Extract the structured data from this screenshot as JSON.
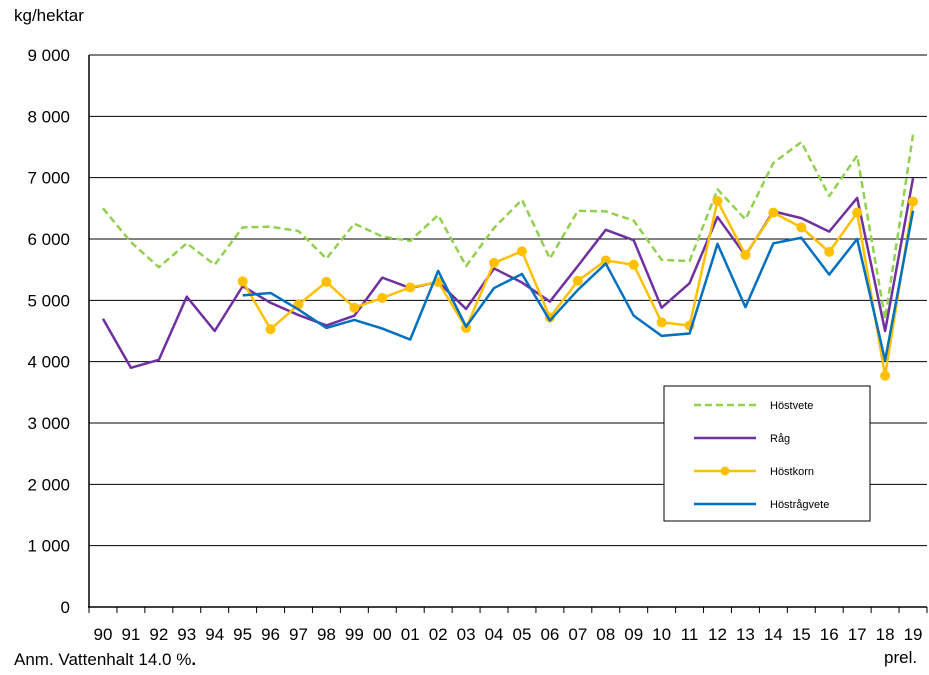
{
  "chart_data": {
    "type": "line",
    "unit_label": "kg/hektar",
    "note": "Anm. Vattenhalt 14.0 %",
    "note_end": ".",
    "x_suffix": "prel.",
    "categories": [
      "90",
      "91",
      "92",
      "93",
      "94",
      "95",
      "96",
      "97",
      "98",
      "99",
      "00",
      "01",
      "02",
      "03",
      "04",
      "05",
      "06",
      "07",
      "08",
      "09",
      "10",
      "11",
      "12",
      "13",
      "14",
      "15",
      "16",
      "17",
      "18",
      "19"
    ],
    "ylim": [
      0,
      9000
    ],
    "yticks": [
      0,
      1000,
      2000,
      3000,
      4000,
      5000,
      6000,
      7000,
      8000,
      9000
    ],
    "ytick_labels": [
      "0",
      "1 000",
      "2 000",
      "3 000",
      "4 000",
      "5 000",
      "6 000",
      "7 000",
      "8 000",
      "9 000"
    ],
    "grid": true,
    "legend_position": "right",
    "series": [
      {
        "name": "Höstvete",
        "color": "#92D050",
        "style": "dashed",
        "markers": false,
        "values": [
          6500,
          5950,
          5540,
          5930,
          5580,
          6190,
          6200,
          6130,
          5680,
          6250,
          6040,
          5970,
          6390,
          5560,
          6180,
          6640,
          5680,
          6460,
          6450,
          6300,
          5660,
          5640,
          6810,
          6320,
          7240,
          7580,
          6700,
          7360,
          4700,
          7700
        ]
      },
      {
        "name": "Råg",
        "color": "#7030A0",
        "style": "solid",
        "markers": false,
        "values": [
          4700,
          3900,
          4030,
          5060,
          4500,
          5230,
          4960,
          4760,
          4590,
          4750,
          5370,
          5200,
          5300,
          4860,
          5520,
          5290,
          4980,
          5560,
          6150,
          5980,
          4880,
          5280,
          6360,
          5730,
          6450,
          6340,
          6120,
          6670,
          4500,
          6990
        ]
      },
      {
        "name": "Höstkorn",
        "color": "#FFC000",
        "style": "solid",
        "markers": true,
        "values": [
          null,
          null,
          null,
          null,
          null,
          5310,
          4530,
          4930,
          5300,
          4880,
          5040,
          5210,
          5300,
          4550,
          5610,
          5800,
          4720,
          5320,
          5650,
          5580,
          4640,
          4590,
          6620,
          5740,
          6430,
          6190,
          5790,
          6430,
          3770,
          6610
        ]
      },
      {
        "name": "Höstrågvete",
        "color": "#0070C0",
        "style": "solid",
        "markers": false,
        "values": [
          null,
          null,
          null,
          null,
          null,
          5080,
          5120,
          4850,
          4550,
          4680,
          4540,
          4360,
          5480,
          4570,
          5200,
          5430,
          4670,
          5170,
          5600,
          4750,
          4420,
          4460,
          5920,
          4890,
          5930,
          6020,
          5420,
          6000,
          4020,
          6460
        ]
      }
    ]
  }
}
